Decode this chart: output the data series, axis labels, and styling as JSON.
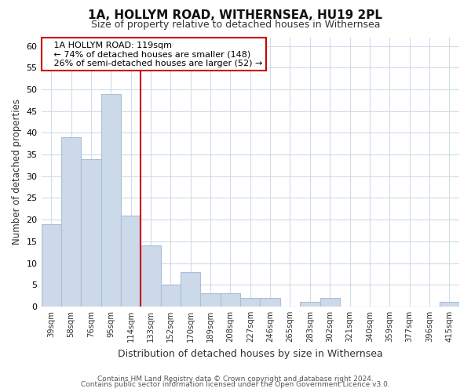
{
  "title": "1A, HOLLYM ROAD, WITHERNSEA, HU19 2PL",
  "subtitle": "Size of property relative to detached houses in Withernsea",
  "xlabel": "Distribution of detached houses by size in Withernsea",
  "ylabel": "Number of detached properties",
  "categories": [
    "39sqm",
    "58sqm",
    "76sqm",
    "95sqm",
    "114sqm",
    "133sqm",
    "152sqm",
    "170sqm",
    "189sqm",
    "208sqm",
    "227sqm",
    "246sqm",
    "265sqm",
    "283sqm",
    "302sqm",
    "321sqm",
    "340sqm",
    "359sqm",
    "377sqm",
    "396sqm",
    "415sqm"
  ],
  "values": [
    19,
    39,
    34,
    49,
    21,
    14,
    5,
    8,
    3,
    3,
    2,
    2,
    0,
    1,
    2,
    0,
    0,
    0,
    0,
    0,
    1
  ],
  "bar_color": "#ccd9e8",
  "bar_edge_color": "#aabfd8",
  "ylim": [
    0,
    62
  ],
  "yticks": [
    0,
    5,
    10,
    15,
    20,
    25,
    30,
    35,
    40,
    45,
    50,
    55,
    60
  ],
  "vline_bin_index": 4,
  "annotation_text_line1": "1A HOLLYM ROAD: 119sqm",
  "annotation_text_line2": "← 74% of detached houses are smaller (148)",
  "annotation_text_line3": "26% of semi-detached houses are larger (52) →",
  "footer_line1": "Contains HM Land Registry data © Crown copyright and database right 2024.",
  "footer_line2": "Contains public sector information licensed under the Open Government Licence v3.0.",
  "background_color": "#ffffff",
  "plot_background": "#ffffff",
  "grid_color": "#d0dce8",
  "annotation_box_color": "#ffffff",
  "annotation_box_edge": "#cc0000",
  "vline_color": "#cc0000"
}
